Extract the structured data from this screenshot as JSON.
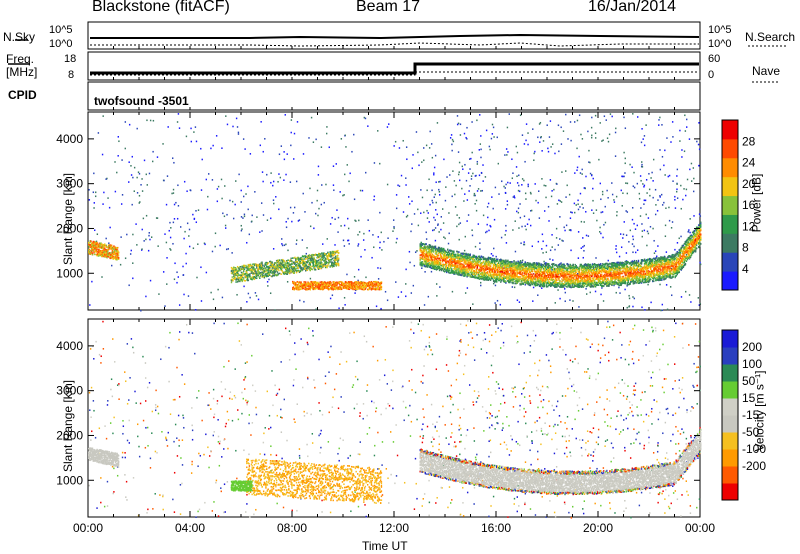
{
  "header": {
    "station": "Blackstone (fitACF)",
    "beam": "Beam 17",
    "date": "16/Jan/2014"
  },
  "sky_panel": {
    "left_label": "N.Sky",
    "right_label": "N.Search",
    "left_ticks": [
      "10^5",
      "10^0"
    ],
    "right_ticks": [
      "10^5",
      "10^0"
    ]
  },
  "freq_panel": {
    "left_label_1": "Freq.",
    "left_label_2": "[MHz]",
    "right_label": "Nave",
    "left_ticks": [
      "18",
      "8"
    ],
    "right_ticks": [
      "60",
      "0"
    ]
  },
  "cpid_panel": {
    "label": "CPID",
    "program": "twofsound -3501"
  },
  "colors": {
    "power_scale": [
      "#1a1aff",
      "#2a46b8",
      "#3c7a62",
      "#2f9a4a",
      "#88c23a",
      "#f2c412",
      "#ff8c00",
      "#ff4a00",
      "#ee0000"
    ],
    "velocity_scale": [
      "#ee0000",
      "#ff5a00",
      "#ff9a00",
      "#f5c020",
      "#c8c8c0",
      "#cfcfc6",
      "#66cc33",
      "#2b8a55",
      "#2a3fbf",
      "#1a1ad6"
    ]
  },
  "chart_data": [
    {
      "type": "heatmap",
      "name": "power",
      "ylabel": "Slant Range [km]",
      "yticks": [
        "1000",
        "2000",
        "3000",
        "4000"
      ],
      "xticks": [
        "00:00",
        "04:00",
        "08:00",
        "12:00",
        "16:00",
        "20:00",
        "00:00"
      ],
      "xlabel": "Time UT",
      "ylim": [
        180,
        4600
      ],
      "xlim_hours": [
        0,
        24
      ],
      "colorbar_label": "Power [dB]",
      "colorbar_ticks": [
        "4",
        "8",
        "12",
        "16",
        "20",
        "24",
        "28"
      ],
      "colorbar_range": [
        0,
        32
      ]
    },
    {
      "type": "heatmap",
      "name": "velocity",
      "ylabel": "Slant Range [km]",
      "yticks": [
        "1000",
        "2000",
        "3000",
        "4000"
      ],
      "xticks": [
        "00:00",
        "04:00",
        "08:00",
        "12:00",
        "16:00",
        "20:00",
        "00:00"
      ],
      "xlabel": "Time UT",
      "ylim": [
        180,
        4600
      ],
      "xlim_hours": [
        0,
        24
      ],
      "colorbar_label": "Velocity [m s⁻¹]",
      "colorbar_ticks": [
        "-200",
        "-100",
        "-50",
        "-15",
        "15",
        "50",
        "100",
        "200"
      ]
    }
  ]
}
